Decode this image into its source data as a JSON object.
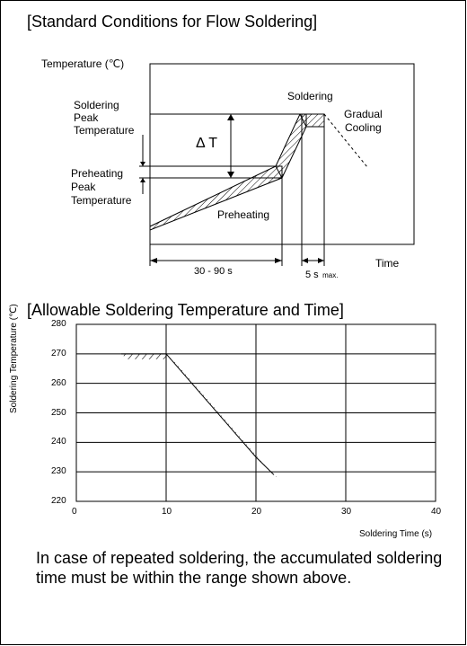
{
  "section1": {
    "title": "[Standard Conditions for Flow Soldering]",
    "temperature_label": "Temperature (℃)",
    "soldering_peak": [
      "Soldering",
      "Peak",
      "Temperature"
    ],
    "preheating_peak": [
      "Preheating",
      "Peak",
      "Temperature"
    ],
    "delta_t": "Δ T",
    "soldering": "Soldering",
    "gradual_cooling": [
      "Gradual",
      "Cooling"
    ],
    "preheating": "Preheating",
    "time_label": "Time",
    "preheat_duration": "30 - 90 s",
    "solder_duration": "5 s",
    "solder_duration_suffix": "max."
  },
  "section2": {
    "title": "[Allowable Soldering Temperature and Time]",
    "chart_data": {
      "type": "line",
      "title": "[Allowable Soldering Temperature and Time]",
      "xlabel": "Soldering Time (s)",
      "ylabel": "Soldering Temperature (℃)",
      "xlim": [
        0,
        40
      ],
      "ylim": [
        220,
        280
      ],
      "x_ticks": [
        "0",
        "10",
        "20",
        "30",
        "40"
      ],
      "y_ticks": [
        "280",
        "270",
        "260",
        "250",
        "240",
        "230",
        "220"
      ],
      "grid": true,
      "series": [
        {
          "x": [
            5,
            10,
            12,
            14,
            16,
            18,
            20,
            22
          ],
          "y": [
            270,
            270,
            263,
            256,
            249,
            242,
            235,
            229
          ]
        }
      ]
    },
    "note": "In case of repeated soldering, the accumulated soldering time must be within the range shown above."
  }
}
